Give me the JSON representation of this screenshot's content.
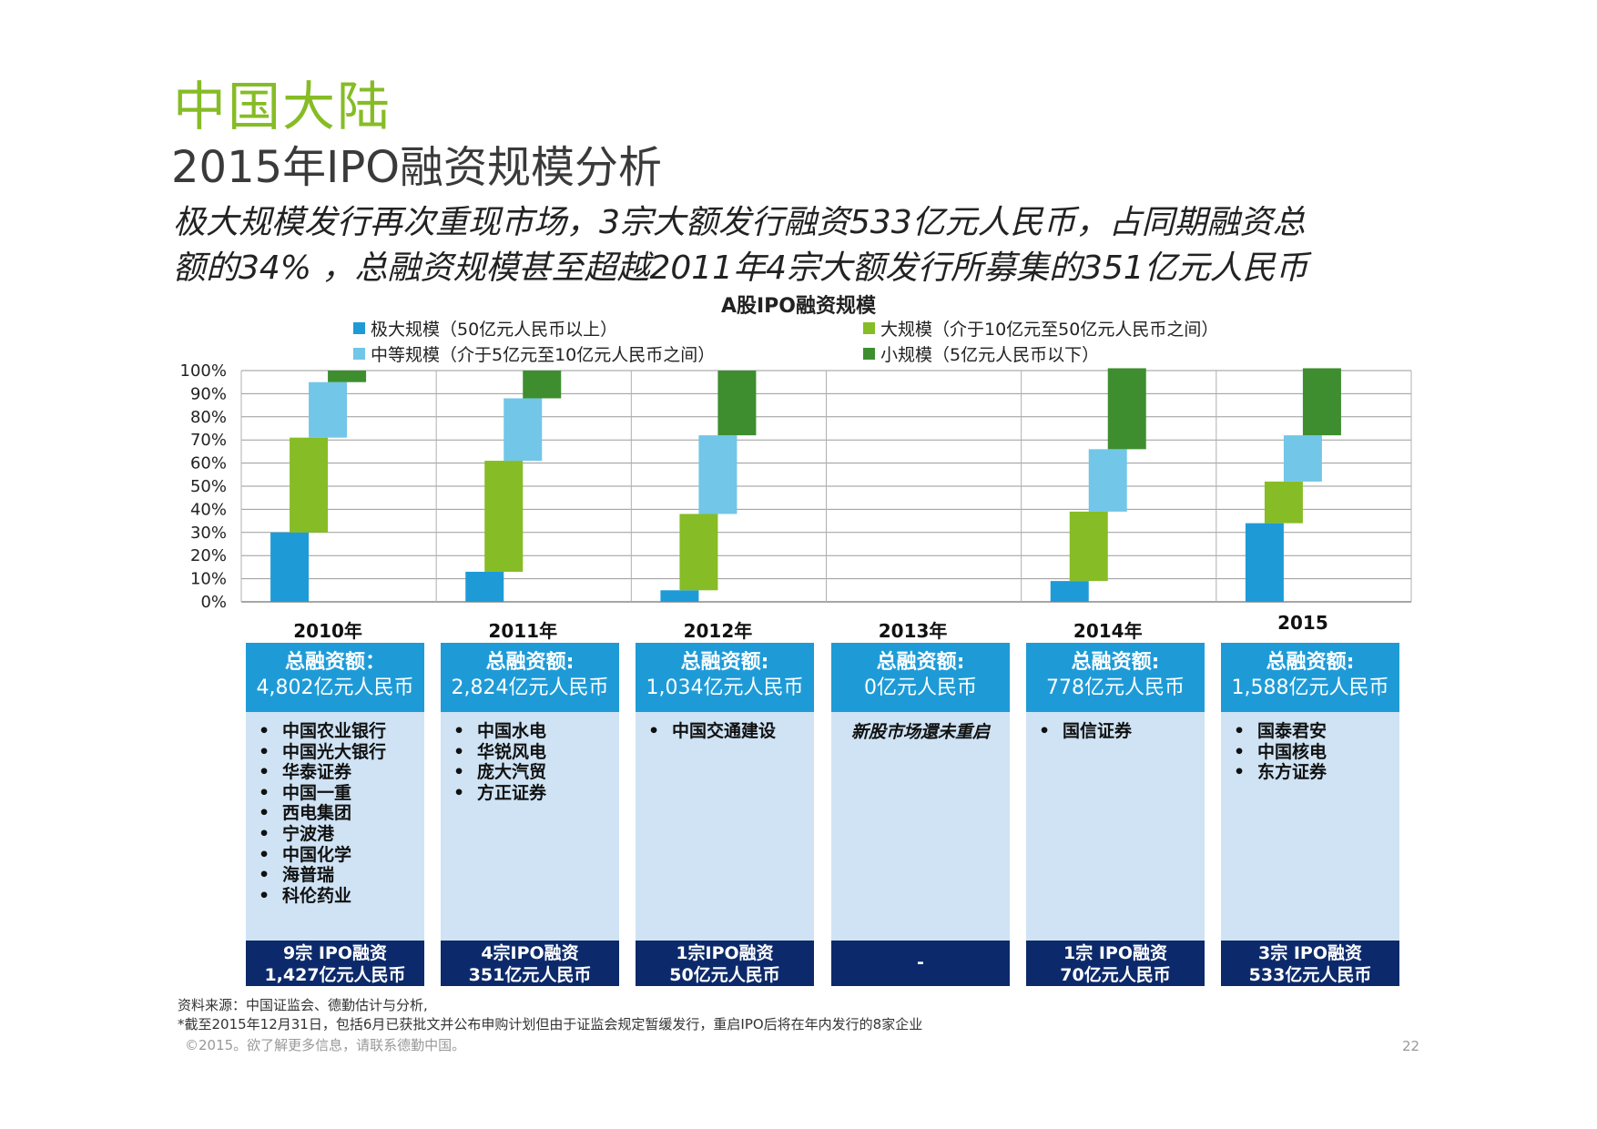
{
  "header": {
    "title": "中国大陆",
    "subtitle": "2015年IPO融资规模分析",
    "headline_line1": "极大规模发行再次重现市场，3宗大额发行融资533亿元人民币，占同期融资总",
    "headline_line2": "额的34% ，总融资规模甚至超越2011年4宗大额发行所募集的351亿元人民币"
  },
  "colors": {
    "very_large": "#1e9bd7",
    "medium": "#72c6e8",
    "large": "#86bc25",
    "small": "#3e8e2f",
    "panel_head": "#1e9bd7",
    "panel_body": "#cfe3f4",
    "panel_foot": "#0c2a6b",
    "title_green": "#86bc25"
  },
  "chart_data": {
    "type": "bar",
    "title": "A股IPO融资规模",
    "categories": [
      "2010年",
      "2011年",
      "2012年",
      "2013年",
      "2014年",
      "2015"
    ],
    "ylim": [
      0,
      100
    ],
    "yticks": [
      "0%",
      "10%",
      "20%",
      "30%",
      "40%",
      "50%",
      "60%",
      "70%",
      "80%",
      "90%",
      "100%"
    ],
    "grid": true,
    "legend": "top",
    "series": [
      {
        "name": "极大规模（50亿元人民币以上）",
        "key": "very_large",
        "values": [
          30,
          13,
          5,
          0,
          9,
          34
        ]
      },
      {
        "name": "大规模（介于10亿元至50亿元人民币之间）",
        "key": "large",
        "values": [
          41,
          48,
          33,
          0,
          30,
          18
        ]
      },
      {
        "name": "中等规模（介于5亿元至10亿元人民币之间）",
        "key": "medium",
        "values": [
          24,
          27,
          34,
          0,
          27,
          20
        ]
      },
      {
        "name": "小规模（5亿元人民币以下）",
        "key": "small",
        "values": [
          5,
          12,
          28,
          0,
          35,
          29
        ]
      }
    ]
  },
  "panels": [
    {
      "head1": "总融资额：",
      "head2": "4,802亿元人民币",
      "items": [
        "中国农业银行",
        "中国光大银行",
        "华泰证券",
        "中国一重",
        "西电集团",
        "宁波港",
        "中国化学",
        "海普瑞",
        "科伦药业"
      ],
      "note": "",
      "foot1": "9宗 IPO融资",
      "foot2": "1,427亿元人民币"
    },
    {
      "head1": "总融资额:",
      "head2": "2,824亿元人民币",
      "items": [
        "中国水电",
        "华锐风电",
        "庞大汽贸",
        "方正证券"
      ],
      "note": "",
      "foot1": "4宗IPO融资",
      "foot2": "351亿元人民币"
    },
    {
      "head1": "总融资额:",
      "head2": "1,034亿元人民币",
      "items": [
        "中国交通建设"
      ],
      "note": "",
      "foot1": "1宗IPO融资",
      "foot2": "50亿元人民币"
    },
    {
      "head1": "总融资额:",
      "head2": "0亿元人民币",
      "items": [],
      "note": "新股市场還未重启",
      "foot1": "-",
      "foot2": ""
    },
    {
      "head1": "总融资额:",
      "head2": "778亿元人民币",
      "items": [
        "国信证券"
      ],
      "note": "",
      "foot1": "1宗 IPO融资",
      "foot2": "70亿元人民币"
    },
    {
      "head1": "总融资额:",
      "head2": "1,588亿元人民币",
      "items": [
        "国泰君安",
        "中国核电",
        "东方证券"
      ],
      "note": "",
      "foot1": "3宗 IPO融资",
      "foot2": "533亿元人民币"
    }
  ],
  "footer": {
    "source": "资料来源：中国证监会、德勤估计与分析,",
    "footnote": "*截至2015年12月31日，包括6月已获批文并公布申购计划但由于证监会规定暂缓发行，重启IPO后将在年内发行的8家企业",
    "copyright": "©2015。欲了解更多信息，请联系德勤中国。",
    "page_number": "22"
  }
}
